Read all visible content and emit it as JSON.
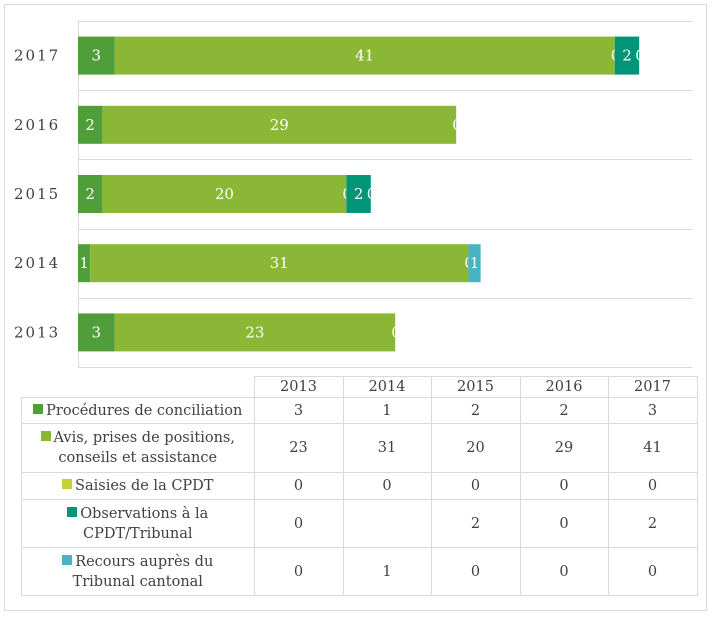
{
  "chart_data": {
    "type": "bar",
    "orientation": "horizontal",
    "stacked": true,
    "title": "",
    "xlabel": "",
    "ylabel": "",
    "categories": [
      "2017",
      "2016",
      "2015",
      "2014",
      "2013"
    ],
    "xlim": [
      0,
      50
    ],
    "grid": true,
    "legend": "data-table-below",
    "series": [
      {
        "name": "Procédures de conciliation",
        "color": "#509e3a",
        "values": [
          3,
          2,
          2,
          1,
          3
        ],
        "labels": [
          "3",
          "2",
          "2",
          "1",
          "3"
        ]
      },
      {
        "name": "Avis, prises de positions, conseils et assistance",
        "color": "#8ab735",
        "values": [
          41,
          29,
          20,
          31,
          23
        ],
        "labels": [
          "41",
          "29",
          "20",
          "31",
          "23"
        ]
      },
      {
        "name": "Saisies de la CPDT",
        "color": "#c3d335",
        "values": [
          0,
          0,
          0,
          0,
          0
        ],
        "labels": [
          "0",
          "0",
          "0",
          "0",
          "0"
        ]
      },
      {
        "name": "Observations à la CPDT/Tribunal",
        "color": "#009479",
        "values": [
          2,
          0,
          2,
          null,
          0
        ],
        "labels": [
          "2",
          "",
          "2",
          "",
          ""
        ]
      },
      {
        "name": "Recours auprès du Tribunal cantonal",
        "color": "#48b3c3",
        "values": [
          0,
          0,
          0,
          1,
          0
        ],
        "labels": [
          "0",
          "",
          "0",
          "1",
          ""
        ]
      }
    ]
  },
  "table": {
    "years": [
      "2013",
      "2014",
      "2015",
      "2016",
      "2017"
    ],
    "rows": [
      {
        "name_lines": [
          "Procédures de conciliation"
        ],
        "color": "#509e3a",
        "values": [
          "3",
          "1",
          "2",
          "2",
          "3"
        ]
      },
      {
        "name_lines": [
          "Avis, prises de positions,",
          "conseils et assistance"
        ],
        "color": "#8ab735",
        "values": [
          "23",
          "31",
          "20",
          "29",
          "41"
        ]
      },
      {
        "name_lines": [
          "Saisies de la CPDT"
        ],
        "color": "#c3d335",
        "values": [
          "0",
          "0",
          "0",
          "0",
          "0"
        ]
      },
      {
        "name_lines": [
          "Observations à la",
          "CPDT/Tribunal"
        ],
        "color": "#009479",
        "values": [
          "0",
          "",
          "2",
          "0",
          "2"
        ]
      },
      {
        "name_lines": [
          "Recours auprès du",
          "Tribunal cantonal"
        ],
        "color": "#48b3c3",
        "values": [
          "0",
          "1",
          "0",
          "0",
          "0"
        ]
      }
    ]
  }
}
